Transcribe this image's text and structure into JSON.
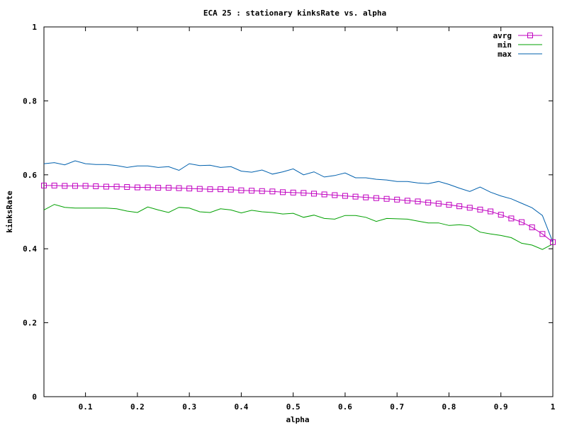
{
  "chart_data": {
    "type": "line",
    "title": "ECA 25 : stationary kinksRate vs. alpha",
    "xlabel": "alpha",
    "ylabel": "kinksRate",
    "xlim": [
      0.02,
      1.0
    ],
    "ylim": [
      0,
      1
    ],
    "xticks": [
      "0.1",
      "0.2",
      "0.3",
      "0.4",
      "0.5",
      "0.6",
      "0.7",
      "0.8",
      "0.9",
      "1"
    ],
    "yticks": [
      "0",
      "0.2",
      "0.4",
      "0.6",
      "0.8",
      "1"
    ],
    "legend_position": "top-right",
    "grid": false,
    "x": [
      0.02,
      0.04,
      0.06,
      0.08,
      0.1,
      0.12,
      0.14,
      0.16,
      0.18,
      0.2,
      0.22,
      0.24,
      0.26,
      0.28,
      0.3,
      0.32,
      0.34,
      0.36,
      0.38,
      0.4,
      0.42,
      0.44,
      0.46,
      0.48,
      0.5,
      0.52,
      0.54,
      0.56,
      0.58,
      0.6,
      0.62,
      0.64,
      0.66,
      0.68,
      0.7,
      0.72,
      0.74,
      0.76,
      0.78,
      0.8,
      0.82,
      0.84,
      0.86,
      0.88,
      0.9,
      0.92,
      0.94,
      0.96,
      0.98,
      1.0
    ],
    "series": [
      {
        "name": "avrg",
        "color": "#c000c0",
        "marker": "square",
        "values": [
          0.571,
          0.571,
          0.57,
          0.57,
          0.57,
          0.569,
          0.568,
          0.568,
          0.567,
          0.566,
          0.566,
          0.565,
          0.565,
          0.564,
          0.563,
          0.562,
          0.561,
          0.561,
          0.56,
          0.558,
          0.557,
          0.556,
          0.555,
          0.553,
          0.552,
          0.551,
          0.549,
          0.547,
          0.545,
          0.543,
          0.541,
          0.539,
          0.537,
          0.535,
          0.533,
          0.53,
          0.528,
          0.525,
          0.522,
          0.519,
          0.515,
          0.511,
          0.506,
          0.501,
          0.492,
          0.482,
          0.472,
          0.458,
          0.44,
          0.418
        ]
      },
      {
        "name": "min",
        "color": "#00a000",
        "marker": "none",
        "values": [
          0.505,
          0.52,
          0.512,
          0.51,
          0.51,
          0.51,
          0.51,
          0.508,
          0.502,
          0.498,
          0.513,
          0.505,
          0.498,
          0.512,
          0.51,
          0.5,
          0.498,
          0.508,
          0.505,
          0.497,
          0.504,
          0.5,
          0.498,
          0.494,
          0.496,
          0.485,
          0.491,
          0.482,
          0.48,
          0.49,
          0.49,
          0.485,
          0.474,
          0.482,
          0.481,
          0.48,
          0.475,
          0.47,
          0.47,
          0.463,
          0.465,
          0.462,
          0.445,
          0.44,
          0.436,
          0.43,
          0.415,
          0.41,
          0.398,
          0.413
        ]
      },
      {
        "name": "max",
        "color": "#0060ad",
        "marker": "none",
        "values": [
          0.63,
          0.633,
          0.627,
          0.638,
          0.63,
          0.628,
          0.628,
          0.625,
          0.62,
          0.624,
          0.624,
          0.62,
          0.622,
          0.612,
          0.63,
          0.625,
          0.626,
          0.62,
          0.622,
          0.61,
          0.607,
          0.613,
          0.602,
          0.608,
          0.616,
          0.6,
          0.608,
          0.594,
          0.598,
          0.605,
          0.592,
          0.592,
          0.588,
          0.586,
          0.582,
          0.582,
          0.578,
          0.576,
          0.582,
          0.574,
          0.564,
          0.555,
          0.567,
          0.553,
          0.543,
          0.535,
          0.523,
          0.511,
          0.49,
          0.418
        ]
      }
    ]
  }
}
